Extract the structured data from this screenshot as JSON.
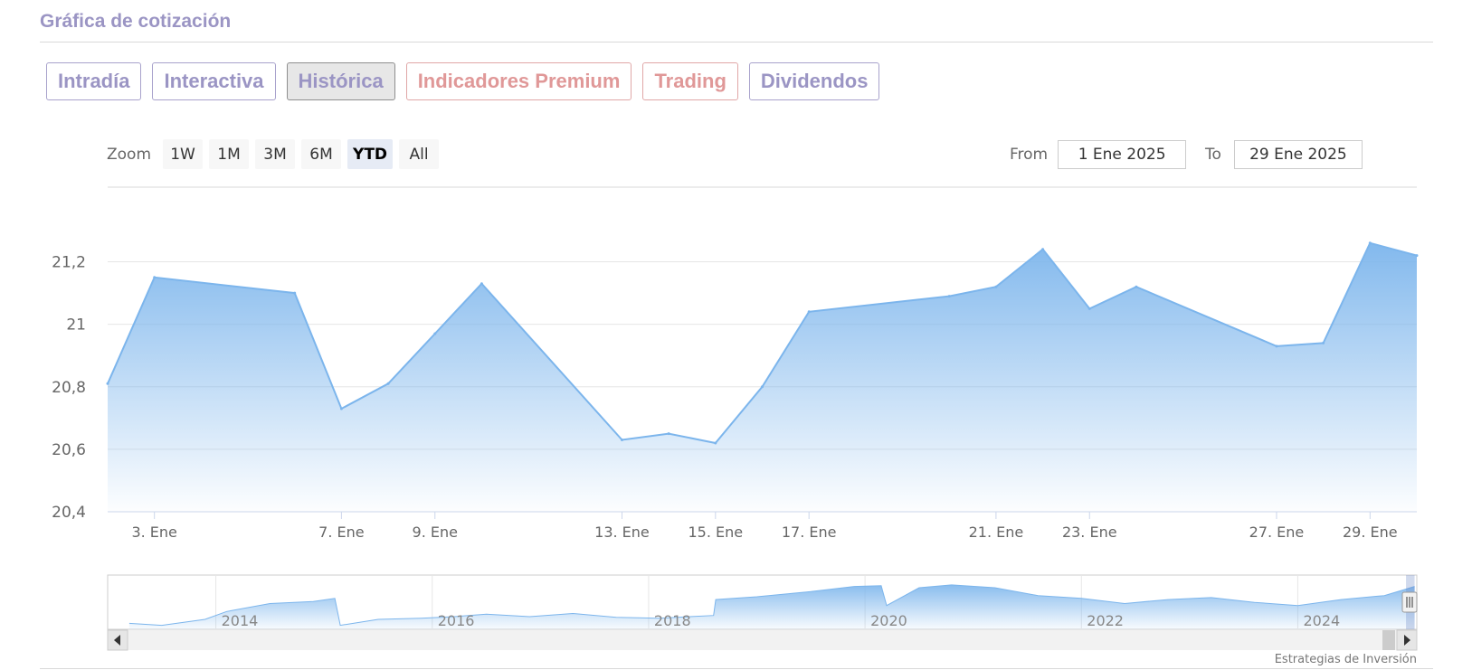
{
  "section": {
    "title": "Gráfica de cotización"
  },
  "tabs": [
    {
      "label": "Intradía",
      "active": false,
      "premium": false
    },
    {
      "label": "Interactiva",
      "active": false,
      "premium": false
    },
    {
      "label": "Histórica",
      "active": true,
      "premium": false
    },
    {
      "label": "Indicadores Premium",
      "active": false,
      "premium": true
    },
    {
      "label": "Trading",
      "active": false,
      "premium": true
    },
    {
      "label": "Dividendos",
      "active": false,
      "premium": false
    }
  ],
  "zoom": {
    "label": "Zoom",
    "buttons": [
      "1W",
      "1M",
      "3M",
      "6M",
      "YTD",
      "All"
    ],
    "active": "YTD"
  },
  "range": {
    "from_label": "From",
    "from_value": "1 Ene 2025",
    "to_label": "To",
    "to_value": "29 Ene 2025"
  },
  "credits": "Estrategias de Inversión",
  "colors": {
    "series": "#7cb5ec",
    "title": "#9b95c4",
    "premium": "#e09898"
  },
  "chart_data": {
    "type": "area",
    "x": [
      "2025-01-02",
      "2025-01-03",
      "2025-01-06",
      "2025-01-07",
      "2025-01-08",
      "2025-01-09",
      "2025-01-10",
      "2025-01-13",
      "2025-01-14",
      "2025-01-15",
      "2025-01-16",
      "2025-01-17",
      "2025-01-20",
      "2025-01-21",
      "2025-01-22",
      "2025-01-23",
      "2025-01-24",
      "2025-01-27",
      "2025-01-28",
      "2025-01-29",
      "2025-01-30"
    ],
    "y": [
      20.81,
      21.15,
      21.1,
      20.73,
      20.81,
      20.97,
      21.13,
      20.63,
      20.65,
      20.62,
      20.8,
      21.04,
      21.09,
      21.12,
      21.24,
      21.05,
      21.12,
      20.93,
      20.94,
      21.26,
      21.22
    ],
    "xlim": [
      "2025-01-02",
      "2025-01-30"
    ],
    "ylim": [
      20.4,
      21.3
    ],
    "yticks": [
      20.4,
      20.6,
      20.8,
      21,
      21.2
    ],
    "ytick_labels": [
      "20,4",
      "20,6",
      "20,8",
      "21",
      "21,2"
    ],
    "xticks": [
      {
        "date": "2025-01-03",
        "label": "3. Ene"
      },
      {
        "date": "2025-01-07",
        "label": "7. Ene"
      },
      {
        "date": "2025-01-09",
        "label": "9. Ene"
      },
      {
        "date": "2025-01-13",
        "label": "13. Ene"
      },
      {
        "date": "2025-01-15",
        "label": "15. Ene"
      },
      {
        "date": "2025-01-17",
        "label": "17. Ene"
      },
      {
        "date": "2025-01-21",
        "label": "21. Ene"
      },
      {
        "date": "2025-01-23",
        "label": "23. Ene"
      },
      {
        "date": "2025-01-27",
        "label": "27. Ene"
      },
      {
        "date": "2025-01-29",
        "label": "29. Ene"
      }
    ],
    "grid": true,
    "legend": "none",
    "navigator": {
      "xlim": [
        2013,
        2025.1
      ],
      "ylim": [
        10,
        23
      ],
      "year_labels": [
        2014,
        2016,
        2018,
        2020,
        2022,
        2024
      ],
      "x": [
        2013.2,
        2013.5,
        2013.9,
        2014.1,
        2014.5,
        2014.9,
        2015.1,
        2015.15,
        2015.5,
        2015.9,
        2016.2,
        2016.5,
        2016.9,
        2017.3,
        2017.7,
        2018.1,
        2018.6,
        2018.62,
        2019.0,
        2019.5,
        2019.9,
        2020.15,
        2020.2,
        2020.5,
        2020.8,
        2021.2,
        2021.6,
        2022.0,
        2022.4,
        2022.8,
        2023.2,
        2023.6,
        2024.0,
        2024.4,
        2024.8,
        2025.08
      ],
      "y": [
        11.5,
        11.0,
        12.5,
        14.5,
        16.5,
        17.0,
        17.8,
        11.0,
        12.5,
        12.8,
        13.2,
        13.8,
        13.2,
        14.0,
        13.0,
        12.8,
        13.5,
        17.5,
        18.2,
        19.5,
        20.8,
        21.0,
        16.0,
        20.5,
        21.2,
        20.5,
        18.5,
        17.8,
        16.5,
        17.5,
        18.0,
        16.8,
        16.0,
        17.5,
        18.5,
        20.8
      ],
      "window_start": "2025-01-01",
      "window_end": "2025-01-30"
    }
  }
}
